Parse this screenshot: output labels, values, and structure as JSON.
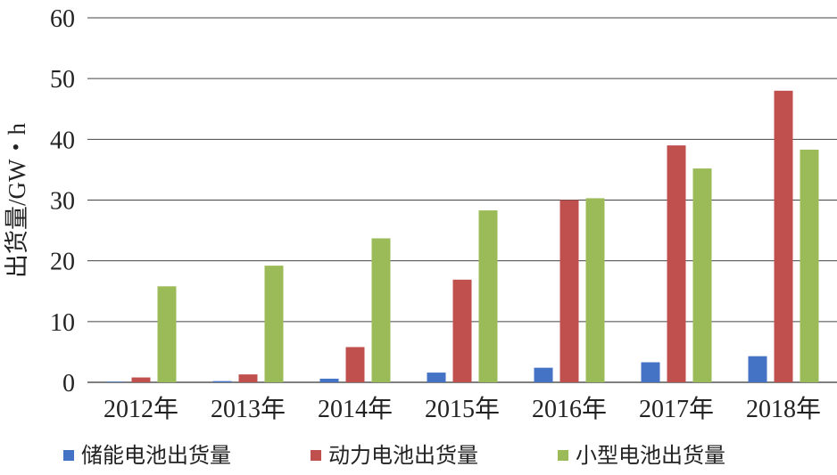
{
  "chart_data": {
    "type": "bar",
    "categories": [
      "2012年",
      "2013年",
      "2014年",
      "2015年",
      "2016年",
      "2017年",
      "2018年"
    ],
    "series": [
      {
        "name": "储能电池出货量",
        "color": "#4472C4",
        "values": [
          0.1,
          0.2,
          0.6,
          1.6,
          2.4,
          3.3,
          4.3
        ]
      },
      {
        "name": "动力电池出货量",
        "color": "#C0504D",
        "values": [
          0.8,
          1.3,
          5.8,
          16.9,
          30.0,
          39.0,
          48.0
        ]
      },
      {
        "name": "小型电池出货量",
        "color": "#9BBB59",
        "values": [
          15.8,
          19.2,
          23.7,
          28.3,
          30.3,
          35.2,
          38.3
        ]
      }
    ],
    "yticks": [
      "0",
      "10",
      "20",
      "30",
      "40",
      "50",
      "60"
    ],
    "ylabel": "出货量/GW・h",
    "xlabel": "",
    "ylim": [
      0,
      60
    ],
    "grid": true,
    "legend_position": "bottom"
  }
}
